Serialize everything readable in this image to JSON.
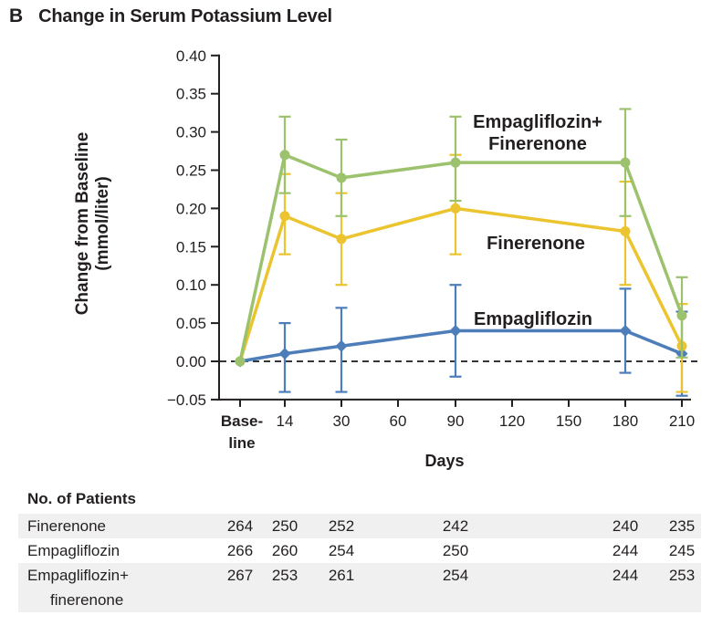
{
  "panel": {
    "letter": "B",
    "title": "Change in Serum Potassium Level"
  },
  "chart_data": {
    "type": "line",
    "title": "Change in Serum Potassium Level",
    "xlabel": "Days",
    "ylabel": "Change from Baseline (mmol/liter)",
    "ylabel_lines": [
      "Change from Baseline",
      "(mmol/liter)"
    ],
    "ylim": [
      -0.05,
      0.4
    ],
    "grid": false,
    "legend_position": "inline-labels",
    "zero_reference_line_dashed": true,
    "ytick_values": [
      0.4,
      0.35,
      0.3,
      0.25,
      0.2,
      0.15,
      0.1,
      0.05,
      0.0,
      -0.05
    ],
    "ytick_labels": [
      "0.40",
      "0.35",
      "0.30",
      "0.25",
      "0.20",
      "0.15",
      "0.10",
      "0.05",
      "0.00",
      "−0.05"
    ],
    "xticks": [
      {
        "lines": [
          "Base-",
          "line"
        ],
        "bold": true
      },
      {
        "lines": [
          "14"
        ]
      },
      {
        "lines": [
          "30"
        ]
      },
      {
        "lines": [
          "60"
        ]
      },
      {
        "lines": [
          "90"
        ]
      },
      {
        "lines": [
          "120"
        ]
      },
      {
        "lines": [
          "150"
        ]
      },
      {
        "lines": [
          "180"
        ]
      },
      {
        "lines": [
          "210"
        ]
      }
    ],
    "x_categories": [
      "Baseline",
      "14",
      "30",
      "90",
      "180",
      "210"
    ],
    "series": [
      {
        "name": "Empagliflozin",
        "label_lines": [
          "Empagliflozin"
        ],
        "color": "#4d7eba",
        "marker": "diamond",
        "values": [
          0.0,
          0.01,
          0.02,
          0.04,
          0.04,
          0.01
        ],
        "err_low": [
          null,
          -0.04,
          -0.04,
          -0.02,
          -0.015,
          -0.045
        ],
        "err_high": [
          null,
          0.05,
          0.07,
          0.1,
          0.095,
          0.065
        ]
      },
      {
        "name": "Finerenone",
        "label_lines": [
          "Finerenone"
        ],
        "color": "#ebc42f",
        "marker": "circle",
        "values": [
          0.0,
          0.19,
          0.16,
          0.2,
          0.17,
          0.02
        ],
        "err_low": [
          null,
          0.14,
          0.1,
          0.14,
          0.1,
          -0.04
        ],
        "err_high": [
          null,
          0.245,
          0.22,
          0.27,
          0.235,
          0.075
        ]
      },
      {
        "name": "Empagliflozin+Finerenone",
        "label_lines": [
          "Empagliflozin+",
          "Finerenone"
        ],
        "color": "#9cc26d",
        "marker": "circle",
        "values": [
          0.0,
          0.27,
          0.24,
          0.26,
          0.26,
          0.06
        ],
        "err_low": [
          null,
          0.22,
          0.19,
          0.21,
          0.19,
          0.005
        ],
        "err_high": [
          null,
          0.32,
          0.29,
          0.32,
          0.33,
          0.11
        ]
      }
    ]
  },
  "patients_table": {
    "header": "No. of Patients",
    "rows": [
      {
        "label_lines": [
          "Finerenone"
        ],
        "values": [
          "264",
          "250",
          "252",
          "242",
          "240",
          "235"
        ],
        "shaded": true
      },
      {
        "label_lines": [
          "Empagliflozin"
        ],
        "values": [
          "266",
          "260",
          "254",
          "250",
          "244",
          "245"
        ],
        "shaded": false
      },
      {
        "label_lines": [
          "Empagliflozin+",
          "finerenone"
        ],
        "values": [
          "267",
          "253",
          "261",
          "254",
          "244",
          "253"
        ],
        "shaded": true
      }
    ]
  },
  "colors": {
    "green": "#9cc26d",
    "yellow": "#ebc42f",
    "blue": "#4d7eba",
    "axis": "#231f20",
    "row_shade": "#f0f0f1"
  }
}
